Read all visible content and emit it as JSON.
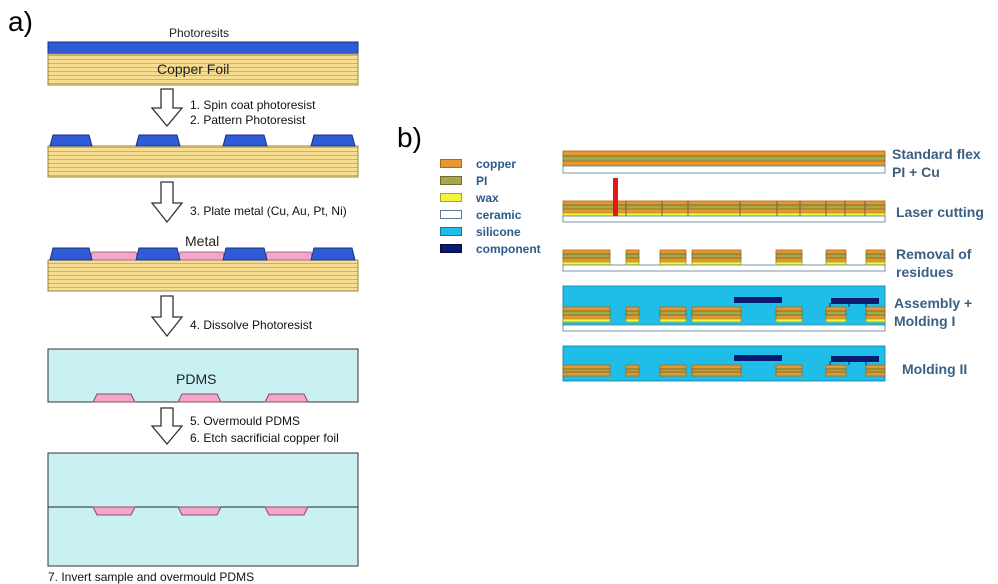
{
  "panel_a": {
    "label": "a)",
    "photoresist_label": "Photoresits",
    "copper_foil_label": "Copper Foil",
    "metal_label": "Metal",
    "pdms_label": "PDMS",
    "steps": {
      "s1": "1. Spin coat photoresist",
      "s2": "2. Pattern Photoresist",
      "s3": "3. Plate metal (Cu, Au, Pt, Ni)",
      "s4": "4. Dissolve Photoresist",
      "s5": "5. Overmould PDMS",
      "s6": "6. Etch sacrificial copper foil",
      "s7": "7. Invert sample and overmould PDMS"
    }
  },
  "panel_b": {
    "label": "b)",
    "legend": [
      {
        "name": "copper",
        "color": "#e8962e"
      },
      {
        "name": "PI",
        "color": "#a8a64c"
      },
      {
        "name": "wax",
        "color": "#f5f53a"
      },
      {
        "name": "ceramic",
        "color": "#ffffff"
      },
      {
        "name": "silicone",
        "color": "#1ebee8"
      },
      {
        "name": "component",
        "color": "#0a1a6e"
      }
    ],
    "stages": {
      "standard_line1": "Standard flex",
      "standard_line2": "PI + Cu",
      "laser": "Laser cutting",
      "removal_line1": "Removal of",
      "removal_line2": "residues",
      "assembly_line1": "Assembly +",
      "assembly_line2": "Molding I",
      "molding2": "Molding II"
    }
  },
  "colors": {
    "photoresist": "#2f5bd6",
    "copper_foil": "#f3d98a",
    "metal": "#f2a6c8",
    "pdms": "#c9f1f4",
    "laser": "#e01a1a"
  }
}
